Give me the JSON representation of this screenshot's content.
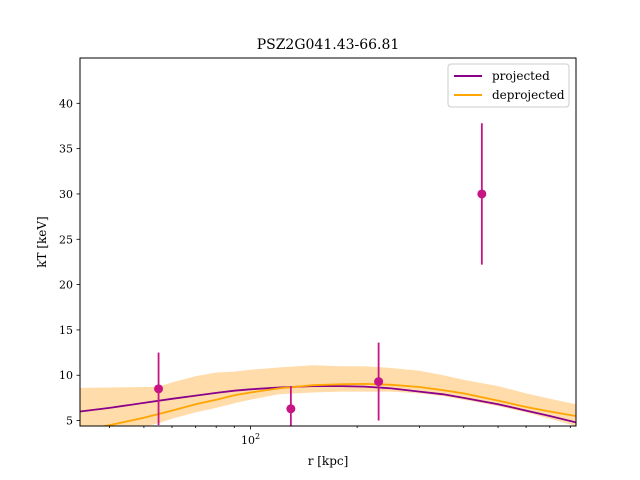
{
  "chart_data": {
    "type": "scatter",
    "title": "PSZ2G041.43-66.81",
    "xlabel": "r [kpc]",
    "ylabel": "kT [keV]",
    "xscale": "log",
    "xlim": [
      33,
      830
    ],
    "ylim": [
      4.4,
      45
    ],
    "x_ticks": [
      {
        "value": 100,
        "label": "10²"
      }
    ],
    "y_ticks": [
      5,
      10,
      15,
      20,
      25,
      30,
      35,
      40
    ],
    "grid": false,
    "legend_position": "top-right",
    "colors": {
      "projected": "#8b008b",
      "deprojected": "#ffa500",
      "band": "#ffdcaa",
      "points": "#c71585"
    },
    "series": [
      {
        "name": "projected",
        "style": "line",
        "color": "#8b008b",
        "x": [
          33,
          40,
          50,
          60,
          70,
          80,
          90,
          100,
          120,
          150,
          180,
          210,
          250,
          300,
          350,
          400,
          500,
          600,
          700,
          830
        ],
        "y": [
          6.0,
          6.4,
          6.95,
          7.4,
          7.75,
          8.05,
          8.3,
          8.45,
          8.65,
          8.8,
          8.8,
          8.75,
          8.55,
          8.2,
          7.9,
          7.5,
          6.8,
          6.1,
          5.5,
          4.8
        ]
      },
      {
        "name": "deprojected",
        "style": "line",
        "color": "#ffa500",
        "x": [
          33,
          40,
          50,
          60,
          70,
          80,
          90,
          100,
          120,
          150,
          180,
          210,
          250,
          300,
          350,
          400,
          500,
          600,
          700,
          830
        ],
        "y": [
          3.9,
          4.5,
          5.3,
          6.1,
          6.8,
          7.3,
          7.8,
          8.1,
          8.55,
          8.9,
          9.0,
          9.05,
          8.95,
          8.7,
          8.35,
          8.0,
          7.2,
          6.5,
          6.0,
          5.5
        ]
      },
      {
        "name": "deprojected band",
        "style": "band",
        "color": "#ffdcaa",
        "x": [
          33,
          40,
          50,
          55,
          60,
          70,
          80,
          90,
          100,
          120,
          150,
          180,
          210,
          250,
          300,
          350,
          400,
          500,
          600,
          700,
          830
        ],
        "lower": [
          3.0,
          3.6,
          4.3,
          4.7,
          5.2,
          5.9,
          6.4,
          6.9,
          7.3,
          7.9,
          8.1,
          8.2,
          8.2,
          8.2,
          8.0,
          7.7,
          7.3,
          6.6,
          5.9,
          5.2,
          4.4
        ],
        "upper": [
          8.6,
          8.65,
          8.7,
          8.75,
          9.2,
          9.9,
          10.3,
          10.4,
          10.6,
          10.85,
          11.1,
          11.0,
          11.0,
          10.8,
          10.5,
          10.0,
          9.5,
          8.8,
          8.0,
          7.4,
          6.8
        ]
      },
      {
        "name": "data points",
        "style": "errorbar",
        "color": "#c71585",
        "x": [
          55,
          130,
          230,
          450
        ],
        "y": [
          8.5,
          6.3,
          9.3,
          30.0
        ],
        "yerr_low": [
          4.0,
          2.5,
          4.3,
          7.8
        ],
        "yerr_high": [
          4.0,
          2.5,
          4.3,
          7.8
        ]
      }
    ],
    "legend": [
      {
        "label": "projected",
        "color": "#8b008b"
      },
      {
        "label": "deprojected",
        "color": "#ffa500"
      }
    ]
  }
}
